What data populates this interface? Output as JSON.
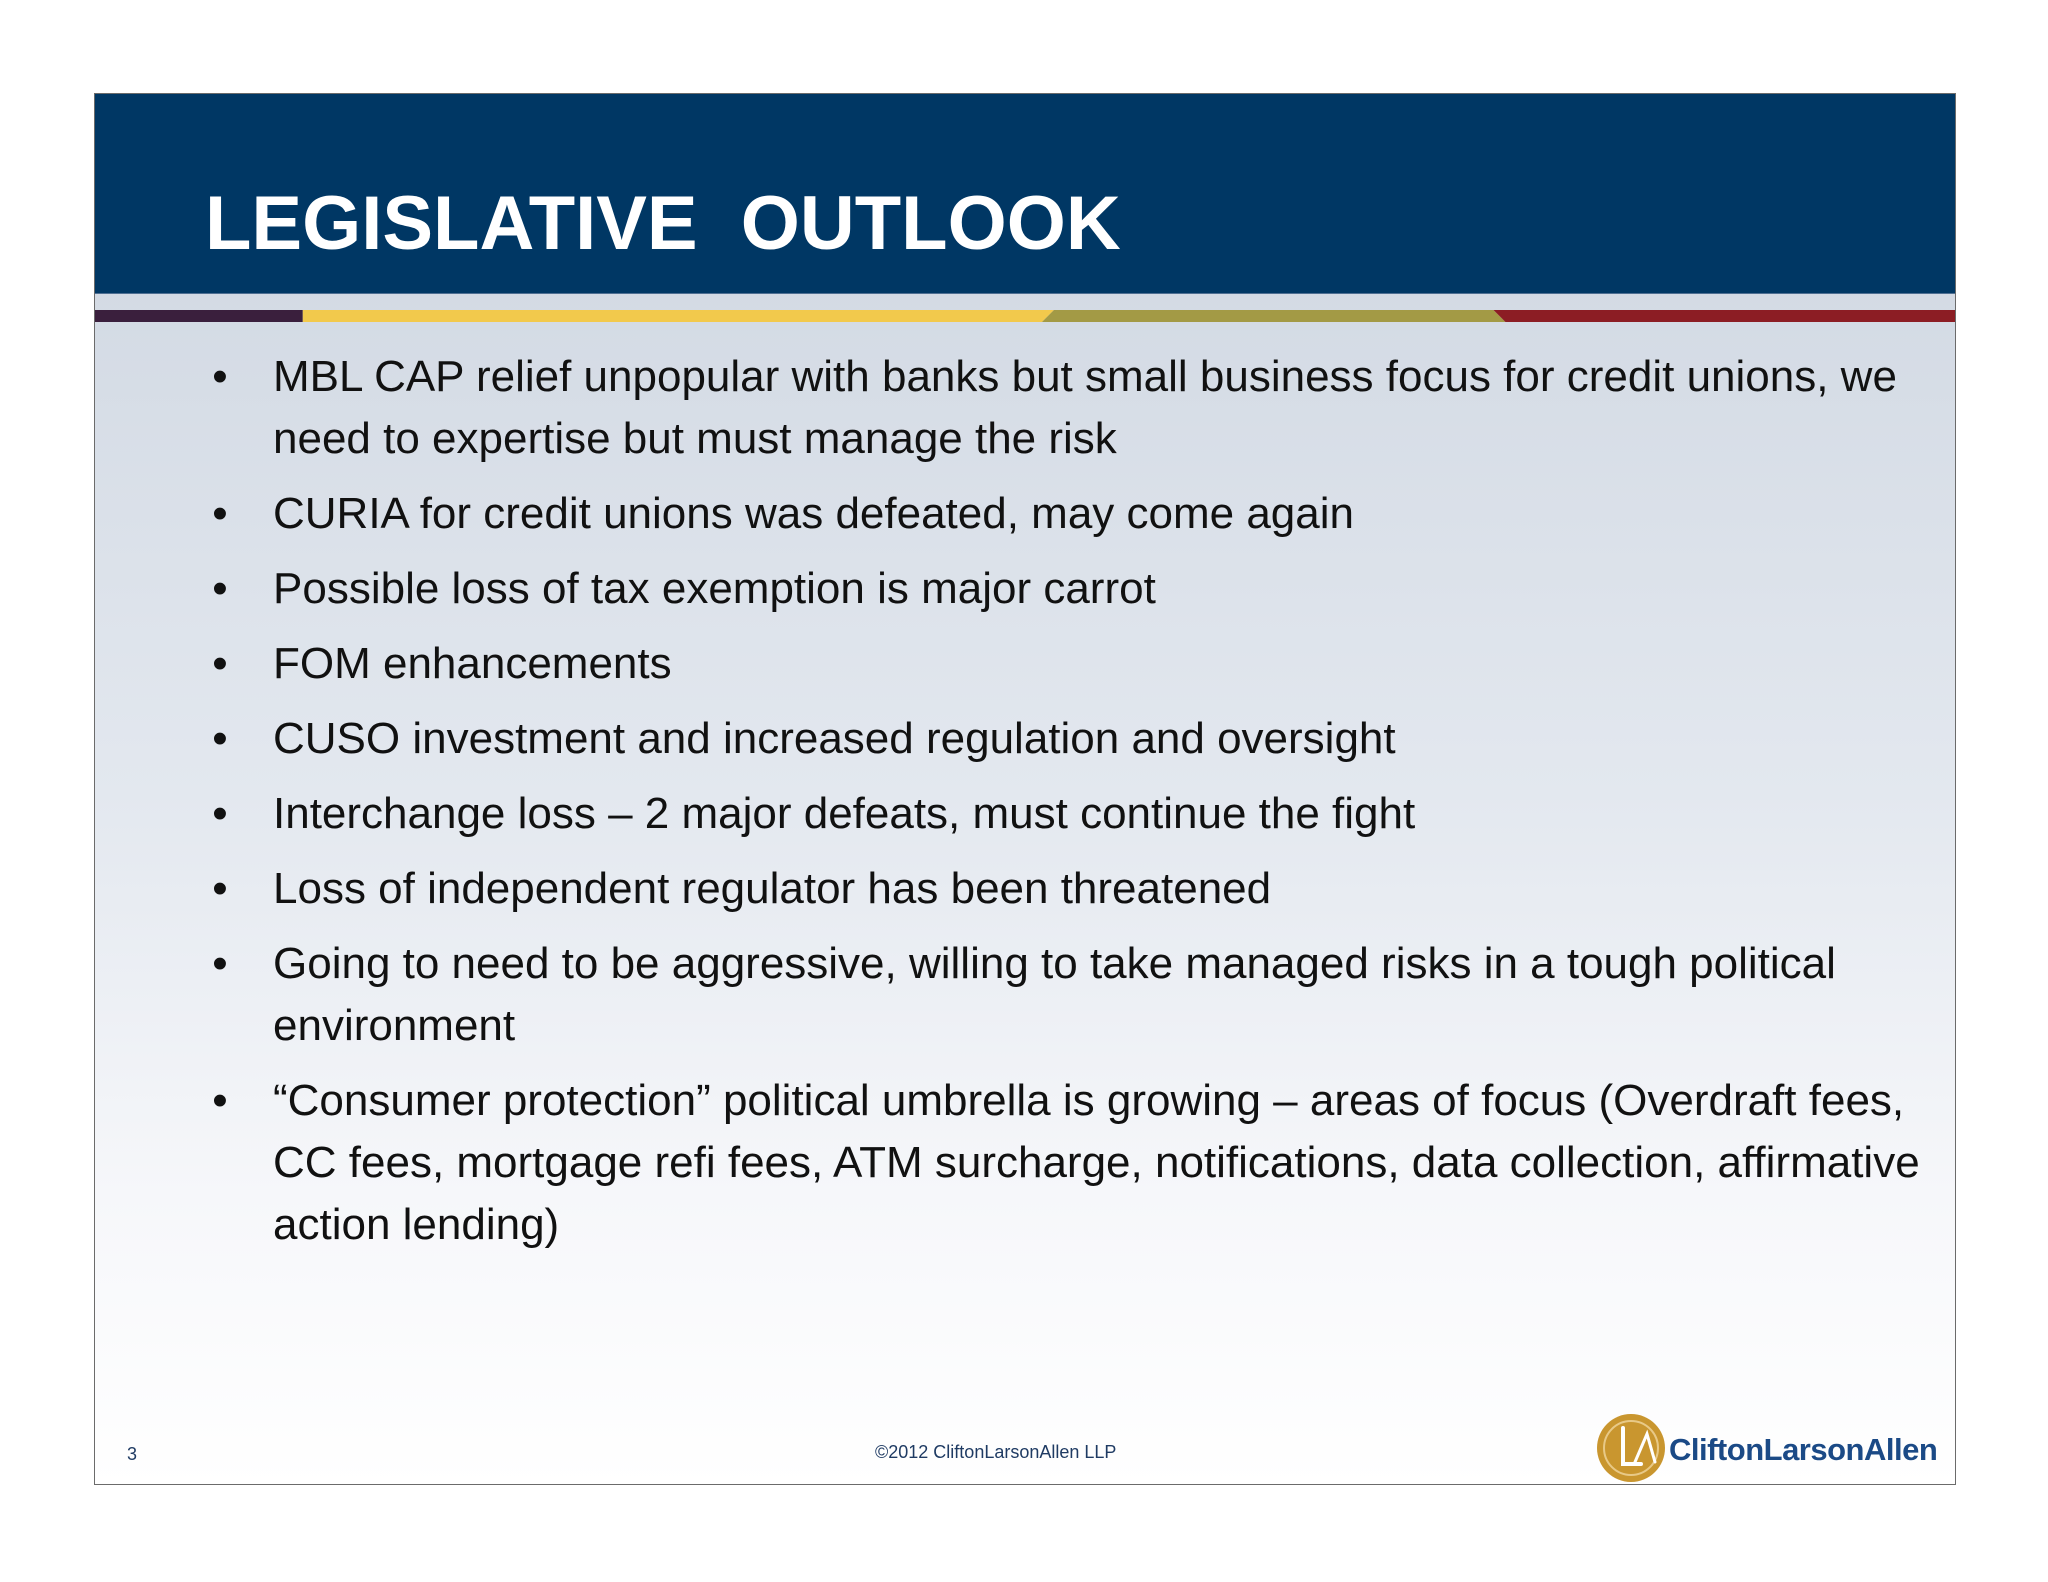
{
  "slide": {
    "title": "LEGISLATIVE  OUTLOOK",
    "bullet_symbol": "•",
    "bullets": [
      "MBL CAP relief unpopular with banks but small business focus for credit unions, we need to expertise but must manage the risk",
      "CURIA for credit unions was defeated, may come again",
      "Possible loss of tax exemption is major carrot",
      "FOM enhancements",
      "CUSO investment and increased regulation and oversight",
      "Interchange loss – 2 major defeats, must continue the fight",
      "Loss of independent regulator has been threatened",
      "Going to need to be aggressive, willing to take managed risks in a tough political environment",
      "“Consumer protection” political umbrella is growing – areas of focus (Overdraft fees, CC fees, mortgage refi fees, ATM surcharge, notifications, data collection, affirmative action lending)"
    ]
  },
  "footer": {
    "page_number": "3",
    "copyright": "©2012 CliftonLarsonAllen LLP",
    "logo_text": "CliftonLarsonAllen"
  },
  "colors": {
    "header_bg": "#003764",
    "stripe_dark": "#3a1f3d",
    "stripe_gold": "#f2c94c",
    "stripe_olive": "#a39a45",
    "stripe_red": "#8c1d24",
    "logo_gold": "#c9962f",
    "logo_blue": "#1b4a86"
  }
}
